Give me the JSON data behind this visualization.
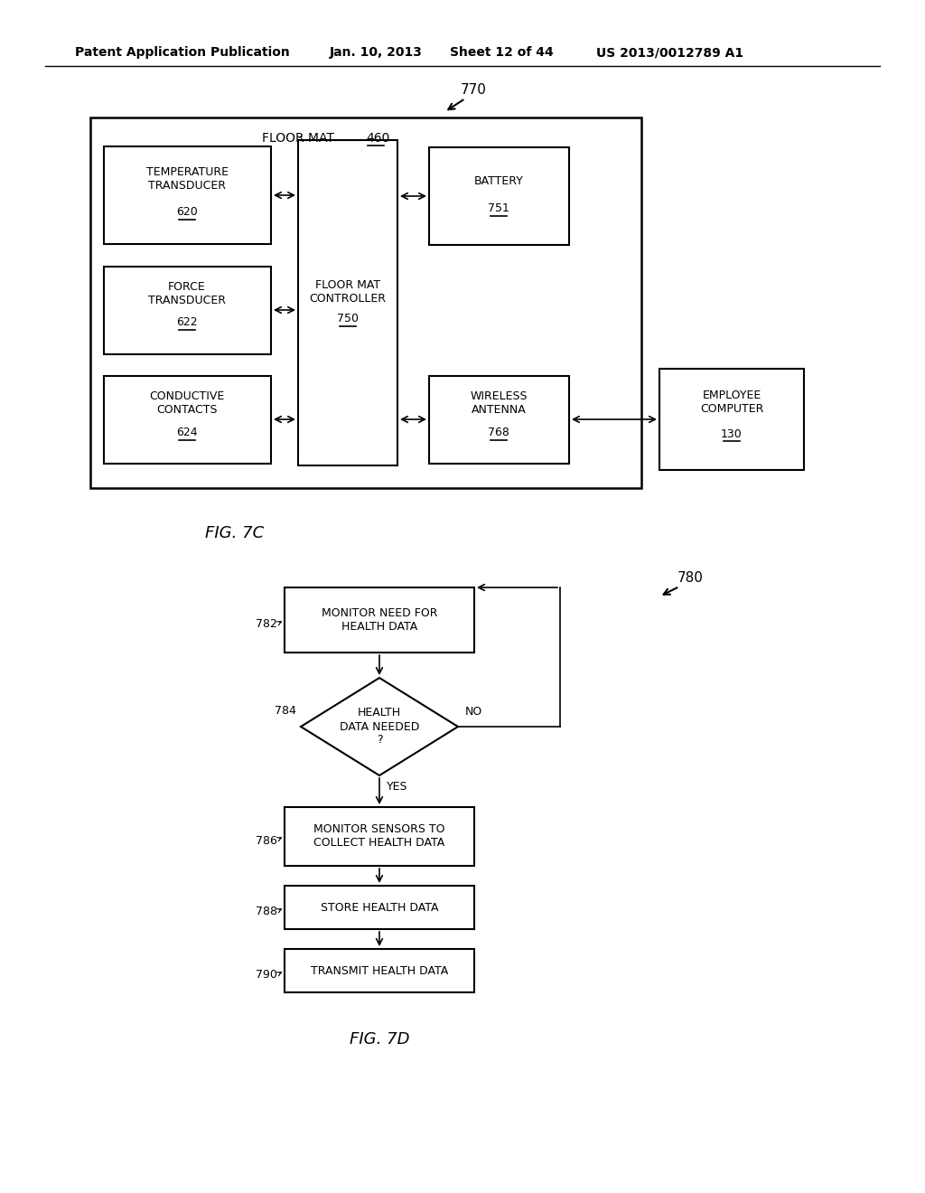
{
  "bg_color": "#ffffff",
  "header_text": "Patent Application Publication",
  "header_date": "Jan. 10, 2013",
  "header_sheet": "Sheet 12 of 44",
  "header_patent": "US 2013/0012789 A1",
  "fig7c_label": "FIG. 7C",
  "fig7d_label": "FIG. 7D",
  "ref_770": "770",
  "ref_780": "780",
  "floor_mat_label": "FLOOR MAT",
  "floor_mat_num": "460",
  "controller_label": "FLOOR MAT\nCONTROLLER",
  "controller_num": "750",
  "temp_label": "TEMPERATURE\nTRANSDUCER",
  "temp_num": "620",
  "force_label": "FORCE\nTRANSDUCER",
  "force_num": "622",
  "conductive_label": "CONDUCTIVE\nCONTACTS",
  "conductive_num": "624",
  "battery_label": "BATTERY",
  "battery_num": "751",
  "wireless_label": "WIRELESS\nANTENNA",
  "wireless_num": "768",
  "employee_label": "EMPLOYEE\nCOMPUTER",
  "employee_num": "130",
  "box782_label": "MONITOR NEED FOR\nHEALTH DATA",
  "box782_num": "782",
  "diamond784_label": "HEALTH\nDATA NEEDED\n?",
  "diamond784_num": "784",
  "box786_label": "MONITOR SENSORS TO\nCOLLECT HEALTH DATA",
  "box786_num": "786",
  "box788_label": "STORE HEALTH DATA",
  "box788_num": "788",
  "box790_label": "TRANSMIT HEALTH DATA",
  "box790_num": "790",
  "yes_label": "YES",
  "no_label": "NO"
}
